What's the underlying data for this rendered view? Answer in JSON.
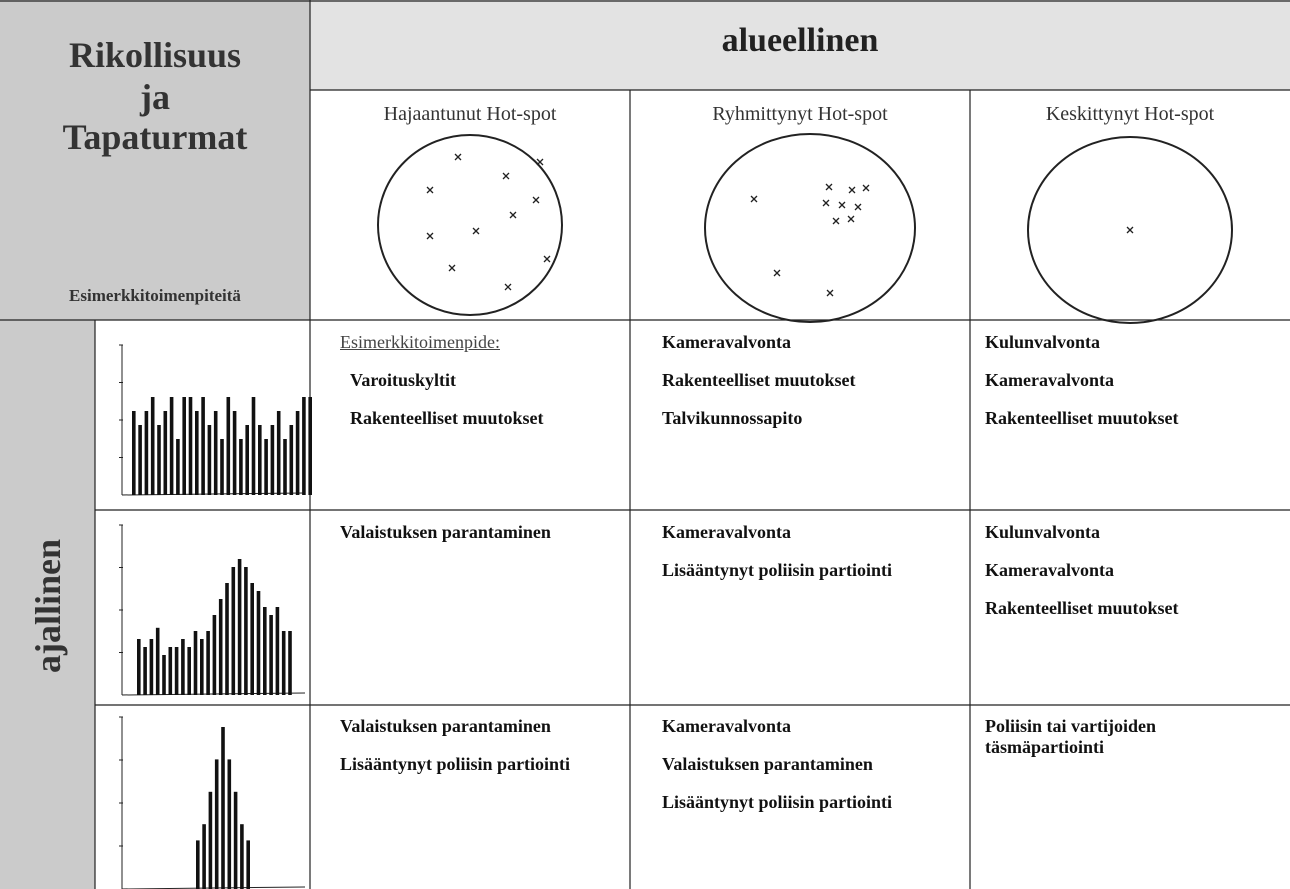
{
  "header": {
    "corner": {
      "lines": [
        "Rikollisuus",
        "ja",
        "Tapaturmat"
      ],
      "subtitle": "Esimerkkitoimenpiteitä"
    },
    "spatial": "alueellinen",
    "temporal": "ajallinen",
    "columns": [
      "Hajaantunut Hot-spot",
      "Ryhmittynyt Hot-spot",
      "Keskittynyt Hot-spot"
    ]
  },
  "rows": [
    {
      "histogram": [
        6,
        5,
        6,
        7,
        5,
        6,
        7,
        4,
        7,
        7,
        6,
        7,
        5,
        6,
        4,
        7,
        6,
        4,
        5,
        7,
        5,
        4,
        5,
        6,
        4,
        5,
        6,
        7,
        7
      ],
      "cells": [
        [
          "Esimerkkitoimenpide:",
          "Varoituskyltit",
          "Rakenteelliset muutokset"
        ],
        [
          "Kameravalvonta",
          "Rakenteelliset muutokset",
          "Talvikunnossapito"
        ],
        [
          "Kulunvalvonta",
          "Kameravalvonta",
          "Rakenteelliset muutokset"
        ]
      ]
    },
    {
      "histogram": [
        3.5,
        3,
        3.5,
        4.2,
        2.5,
        3,
        3,
        3.5,
        3,
        4,
        3.5,
        4,
        5,
        6,
        7,
        8,
        8.5,
        8,
        7,
        6.5,
        5.5,
        5,
        5.5,
        4,
        4
      ],
      "cells": [
        [
          "Valaistuksen parantaminen"
        ],
        [
          "Kameravalvonta",
          "Lisääntynyt poliisin partiointi"
        ],
        [
          "Kulunvalvonta",
          "Kameravalvonta",
          "Rakenteelliset muutokset"
        ]
      ]
    },
    {
      "histogram": [
        3,
        4,
        6,
        8,
        10,
        8,
        6,
        4,
        3
      ],
      "cells": [
        [
          "Valaistuksen parantaminen",
          "Lisääntynyt poliisin partiointi"
        ],
        [
          "Kameravalvonta",
          "Valaistuksen parantaminen",
          "Lisääntynyt poliisin partiointi"
        ],
        [
          "Poliisin tai vartijoiden täsmäpartiointi"
        ]
      ]
    }
  ]
}
